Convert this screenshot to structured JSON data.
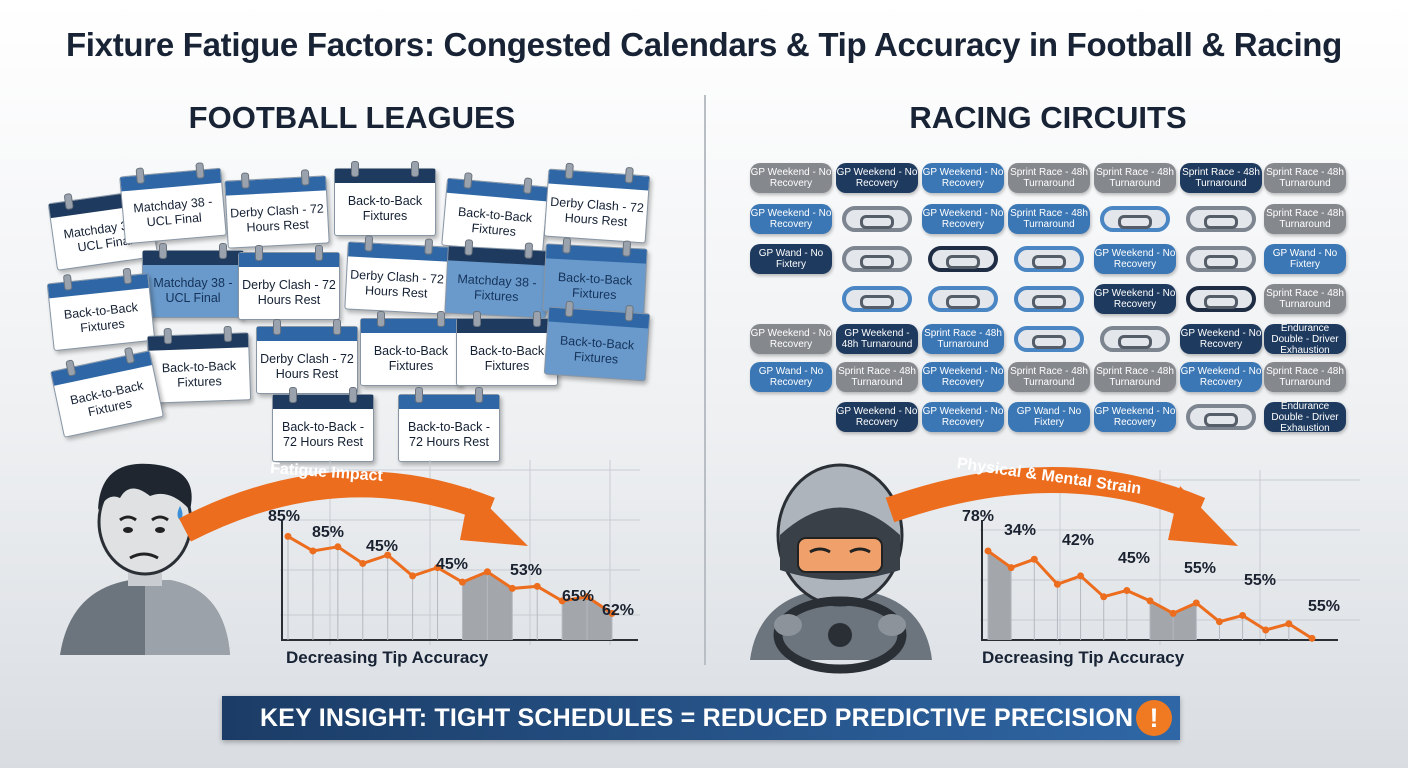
{
  "title": "Fixture Fatigue Factors: Congested Calendars & Tip Accuracy in Football & Racing",
  "colors": {
    "navy": "#1e3a5e",
    "blue": "#3b77b5",
    "grey": "#85888d",
    "orange": "#ec6d1e",
    "banner": "#1b3c66"
  },
  "football": {
    "heading": "FOOTBALL LEAGUES",
    "calendars": [
      "Matchday 38 - UCL Final",
      "Matchday 38 - UCL Final",
      "Derby Clash - 72 Hours Rest",
      "Back-to-Back Fixtures",
      "Back-to-Back Fixtures",
      "Derby Clash - 72 Hours Rest",
      "Matchday 38 - UCL Final",
      "Derby Clash - 72 Hours Rest",
      "Derby Clash - 72 Hours Rest",
      "Matchday 38 - Fixtures",
      "Back-to-Back Fixtures",
      "Back-to-Back Fixtures",
      "Back-to-Back Fixtures",
      "Derby Clash - 72 Hours Rest",
      "Back-to-Back Fixtures",
      "Back-to-Back Fixtures",
      "Back-to-Back Fixtures",
      "Back-to-Back Fixtures",
      "Back-to-Back - 72 Hours Rest",
      "Back-to-Back - 72 Hours Rest"
    ],
    "arrow_label": "Fatigue Impact",
    "person_icon": "worried-fan-icon",
    "chart_data": {
      "type": "line",
      "series": [
        {
          "values": [
            85,
            78,
            80,
            72,
            76,
            66,
            70,
            63,
            68,
            60,
            61,
            54,
            56,
            48
          ]
        }
      ],
      "value_labels": [
        "85%",
        "85%",
        "45%",
        "45%",
        "53%",
        "65%",
        "62%"
      ],
      "xlabel": "Decreasing Tip Accuracy"
    }
  },
  "racing": {
    "heading": "RACING CIRCUITS",
    "pills": [
      {
        "text": "GP Weekend - No Recovery",
        "color": "grey"
      },
      {
        "text": "GP Weekend - No Recovery",
        "color": "navy"
      },
      {
        "text": "GP Weekend - No Recovery",
        "color": "blue"
      },
      {
        "text": "Sprint Race - 48h Turnaround",
        "color": "grey"
      },
      {
        "text": "Sprint Race - 48h Turnaround",
        "color": "grey"
      },
      {
        "text": "Sprint Race - 48h Turnaround",
        "color": "navy"
      },
      {
        "text": "Sprint Race - 48h Turnaround",
        "color": "grey"
      },
      {
        "text": "GP Weekend - No Recovery",
        "color": "blue"
      },
      {
        "text": "GP Weekend - No Recovery",
        "color": "blue"
      },
      {
        "text": "Sprint Race - 48h Turnaround",
        "color": "blue"
      },
      {
        "text": "Sprint Race - 48h Turnaround",
        "color": "grey"
      },
      {
        "text": "GP Wand - No Fixtery",
        "color": "navy"
      },
      {
        "text": "GP Weekend - No Recovery",
        "color": "blue"
      },
      {
        "text": "GP Wand - No Fixtery",
        "color": "blue"
      },
      {
        "text": "GP Weekend - No Recovery",
        "color": "navy"
      },
      {
        "text": "Sprint Race - 48h Turnaround",
        "color": "grey"
      },
      {
        "text": "GP Weekend - No Recovery",
        "color": "grey"
      },
      {
        "text": "GP Weekend - 48h Turnaround",
        "color": "navy"
      },
      {
        "text": "Sprint Race - 48h Turnaround",
        "color": "blue"
      },
      {
        "text": "GP Weekend - No Recovery",
        "color": "navy"
      },
      {
        "text": "Endurance Double - Driver Exhaustion",
        "color": "navy"
      },
      {
        "text": "GP Wand - No Recovery",
        "color": "blue"
      },
      {
        "text": "Sprint Race - 48h Turnaround",
        "color": "grey"
      },
      {
        "text": "GP Weekend - No Recovery",
        "color": "blue"
      },
      {
        "text": "Sprint Race - 48h Turnaround",
        "color": "grey"
      },
      {
        "text": "Sprint Race - 48h Turnaround",
        "color": "grey"
      },
      {
        "text": "GP Weekend - No Recovery",
        "color": "blue"
      },
      {
        "text": "Sprint Race - 48h Turnaround",
        "color": "grey"
      },
      {
        "text": "GP Weekend - No Recovery",
        "color": "navy"
      },
      {
        "text": "GP Weekend - No Recovery",
        "color": "blue"
      },
      {
        "text": "GP Wand - No Fixtery",
        "color": "blue"
      },
      {
        "text": "GP Weekend - No Recovery",
        "color": "blue"
      },
      {
        "text": "Endurance Double - Driver Exhaustion",
        "color": "navy"
      }
    ],
    "arrow_label": "Physical & Mental Strain",
    "person_icon": "helmeted-driver-icon",
    "chart_data": {
      "type": "line",
      "series": [
        {
          "values": [
            78,
            70,
            74,
            62,
            66,
            56,
            59,
            54,
            48,
            53,
            44,
            47,
            40,
            43,
            36
          ]
        }
      ],
      "value_labels": [
        "78%",
        "34%",
        "42%",
        "45%",
        "55%",
        "55%",
        "55%"
      ],
      "xlabel": "Decreasing Tip Accuracy"
    }
  },
  "insight": {
    "text": "KEY INSIGHT: TIGHT SCHEDULES = REDUCED PREDICTIVE PRECISION",
    "icon": "!"
  }
}
